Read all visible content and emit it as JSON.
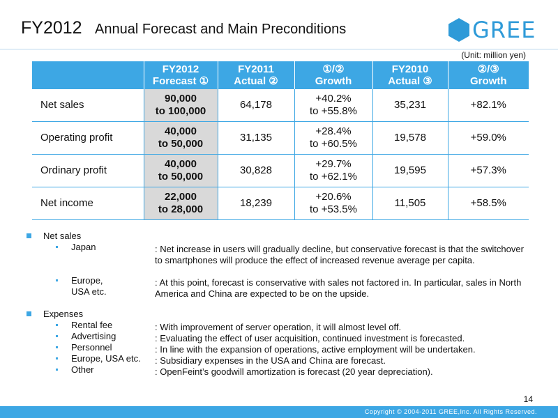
{
  "header": {
    "title": "FY2012",
    "subtitle": "Annual Forecast and Main Preconditions",
    "logo_text": "GREE",
    "brand_color": "#2e9ad8"
  },
  "unit_label": "(Unit: million yen)",
  "table": {
    "headers": [
      [],
      [
        "FY2012",
        "Forecast ①"
      ],
      [
        "FY2011",
        "Actual ②"
      ],
      [
        "①/②",
        "Growth"
      ],
      [
        "FY2010",
        "Actual ③"
      ],
      [
        "②/③",
        "Growth"
      ]
    ],
    "rows": [
      {
        "label": "Net sales",
        "forecast": [
          "90,000",
          "to 100,000"
        ],
        "actual_2011": "64,178",
        "growth_12": [
          "+40.2%",
          "to +55.8%"
        ],
        "actual_2010": "35,231",
        "growth_23": "+82.1%"
      },
      {
        "label": "Operating profit",
        "forecast": [
          "40,000",
          "to 50,000"
        ],
        "actual_2011": "31,135",
        "growth_12": [
          "+28.4%",
          "to +60.5%"
        ],
        "actual_2010": "19,578",
        "growth_23": "+59.0%"
      },
      {
        "label": "Ordinary profit",
        "forecast": [
          "40,000",
          "to 50,000"
        ],
        "actual_2011": "30,828",
        "growth_12": [
          "+29.7%",
          "to +62.1%"
        ],
        "actual_2010": "19,595",
        "growth_23": "+57.3%"
      },
      {
        "label": "Net income",
        "forecast": [
          "22,000",
          "to 28,000"
        ],
        "actual_2011": "18,239",
        "growth_12": [
          "+20.6%",
          "to +53.5%"
        ],
        "actual_2010": "11,505",
        "growth_23": "+58.5%"
      }
    ],
    "header_color": "#3da7e4",
    "highlight_color": "#d9d9d9"
  },
  "net_sales": {
    "heading": "Net sales",
    "items": [
      {
        "label": "Japan",
        "note": [
          ": Net increase in users will gradually decline, but conservative forecast is that the switchover",
          "to smartphones will produce the effect of increased revenue average per capita."
        ]
      },
      {
        "label": [
          "Europe,",
          "USA etc."
        ],
        "note": [
          ": At this point, forecast is conservative with sales not factored in. In particular, sales in North",
          "America and China are expected to be on the upside."
        ]
      }
    ]
  },
  "expenses": {
    "heading": "Expenses",
    "items": [
      {
        "label": "Rental fee",
        "note": ": With improvement of server operation, it will almost level off."
      },
      {
        "label": "Advertising",
        "note": ": Evaluating the effect of user acquisition, continued investment is forecasted."
      },
      {
        "label": "Personnel",
        "note": ": In line with the expansion of operations, active employment  will be undertaken."
      },
      {
        "label": "Europe, USA etc.",
        "note": ": Subsidiary expenses in the USA and China are forecast."
      },
      {
        "label": "Other",
        "note": ": OpenFeint’s goodwill amortization is forecast (20 year depreciation)."
      }
    ]
  },
  "footer": {
    "page_number": "14",
    "copyright": "Copyright © 2004-2011 GREE,Inc. All Rights Reserved."
  }
}
